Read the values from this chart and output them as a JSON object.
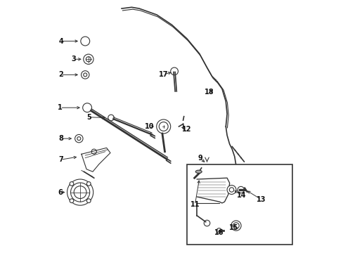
{
  "bg_color": "#ffffff",
  "line_color": "#333333",
  "labels_data": [
    [
      4,
      0.058,
      0.84,
      0.135,
      0.84
    ],
    [
      3,
      0.11,
      0.768,
      0.148,
      0.768
    ],
    [
      2,
      0.058,
      0.706,
      0.135,
      0.706
    ],
    [
      1,
      0.055,
      0.575,
      0.143,
      0.575
    ],
    [
      5,
      0.17,
      0.537,
      0.244,
      0.535
    ],
    [
      8,
      0.058,
      0.452,
      0.11,
      0.452
    ],
    [
      7,
      0.058,
      0.368,
      0.13,
      0.38
    ],
    [
      6,
      0.055,
      0.238,
      0.083,
      0.238
    ],
    [
      10,
      0.412,
      0.5,
      0.437,
      0.5
    ],
    [
      12,
      0.558,
      0.49,
      0.53,
      0.5
    ],
    [
      17,
      0.468,
      0.707,
      0.506,
      0.718
    ],
    [
      18,
      0.648,
      0.637,
      0.672,
      0.648
    ],
    [
      9,
      0.613,
      0.373,
      0.638,
      0.352
    ],
    [
      11,
      0.592,
      0.188,
      0.61,
      0.295
    ],
    [
      14,
      0.778,
      0.226,
      0.742,
      0.25
    ],
    [
      13,
      0.855,
      0.21,
      0.793,
      0.248
    ],
    [
      15,
      0.748,
      0.098,
      0.758,
      0.118
    ],
    [
      16,
      0.688,
      0.078,
      0.7,
      0.095
    ]
  ]
}
